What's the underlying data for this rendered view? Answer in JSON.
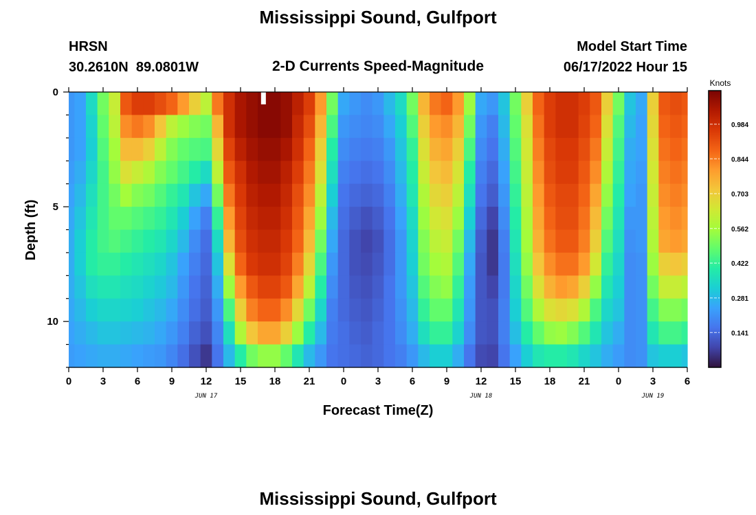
{
  "header": {
    "title": "Mississippi Sound, Gulfport",
    "station_id": "HRSN",
    "coords": "30.2610N  89.0801W",
    "subtitle": "2-D Currents Speed-Magnitude",
    "model_start_label": "Model Start Time",
    "model_start_value": "06/17/2022 Hour 15"
  },
  "footer": {
    "next_title": "Mississippi Sound, Gulfport"
  },
  "chart_data": {
    "type": "heatmap",
    "title": "2-D Currents Speed-Magnitude",
    "xlabel": "Forecast Time(Z)",
    "ylabel": "Depth (ft)",
    "x_range_hours": [
      0,
      54
    ],
    "y_range_ft": [
      0,
      12
    ],
    "x_tick_values": [
      0,
      3,
      6,
      9,
      12,
      15,
      18,
      21,
      24,
      27,
      30,
      33,
      36,
      39,
      42,
      45,
      48,
      51,
      54
    ],
    "x_tick_labels": [
      "0",
      "3",
      "6",
      "9",
      "12",
      "15",
      "18",
      "21",
      "0",
      "3",
      "6",
      "9",
      "12",
      "15",
      "18",
      "21",
      "0",
      "3",
      "6"
    ],
    "y_tick_values": [
      0,
      5,
      10
    ],
    "y_tick_labels": [
      "0",
      "5",
      "10"
    ],
    "date_labels": [
      {
        "text": "JUN 17",
        "hour": 12
      },
      {
        "text": "JUN 18",
        "hour": 36
      },
      {
        "text": "JUN 19",
        "hour": 51
      }
    ],
    "now_marker_hour": 17,
    "colorbar": {
      "unit": "Knots",
      "min": 0.0,
      "max": 1.12,
      "tick_values": [
        0.141,
        0.281,
        0.422,
        0.562,
        0.703,
        0.844,
        0.984
      ],
      "tick_labels": [
        "0.141",
        "0.281",
        "0.422",
        "0.562",
        "0.703",
        "0.844",
        "0.984"
      ],
      "colors": [
        "#30123b",
        "#4145ab",
        "#4675ed",
        "#39a2fc",
        "#1bcfd4",
        "#24eca6",
        "#61fc6c",
        "#a4fc3b",
        "#d1e834",
        "#f3c63a",
        "#fe9b2d",
        "#f36315",
        "#d93806",
        "#b11901",
        "#7a0403"
      ]
    },
    "time_hours": [
      0,
      1,
      2,
      3,
      4,
      5,
      6,
      7,
      8,
      9,
      10,
      11,
      12,
      13,
      14,
      15,
      16,
      17,
      18,
      19,
      20,
      21,
      22,
      23,
      24,
      25,
      26,
      27,
      28,
      29,
      30,
      31,
      32,
      33,
      34,
      35,
      36,
      37,
      38,
      39,
      40,
      41,
      42,
      43,
      44,
      45,
      46,
      47,
      48,
      49,
      50,
      51,
      52,
      53,
      54
    ],
    "depth_ft": [
      0.5,
      1.5,
      2.5,
      3.5,
      4.5,
      5.5,
      6.5,
      7.5,
      8.5,
      9.5,
      10.5,
      11.5
    ],
    "speed_knots": [
      [
        0.22,
        0.24,
        0.35,
        0.5,
        0.62,
        0.9,
        0.95,
        0.95,
        0.92,
        0.88,
        0.8,
        0.7,
        0.6,
        0.85,
        0.98,
        1.05,
        1.08,
        1.1,
        1.1,
        1.08,
        1.02,
        0.95,
        0.8,
        0.5,
        0.25,
        0.22,
        0.2,
        0.22,
        0.28,
        0.35,
        0.5,
        0.75,
        0.85,
        0.88,
        0.8,
        0.55,
        0.25,
        0.22,
        0.3,
        0.5,
        0.7,
        0.88,
        0.95,
        0.98,
        0.98,
        0.95,
        0.9,
        0.7,
        0.5,
        0.3,
        0.25,
        0.7,
        0.9,
        0.92,
        0.9
      ],
      [
        0.22,
        0.24,
        0.33,
        0.48,
        0.6,
        0.82,
        0.85,
        0.82,
        0.72,
        0.6,
        0.55,
        0.52,
        0.5,
        0.75,
        0.98,
        1.05,
        1.08,
        1.1,
        1.1,
        1.08,
        1.0,
        0.92,
        0.75,
        0.45,
        0.22,
        0.2,
        0.19,
        0.2,
        0.25,
        0.32,
        0.46,
        0.7,
        0.8,
        0.82,
        0.75,
        0.5,
        0.22,
        0.18,
        0.28,
        0.48,
        0.66,
        0.86,
        0.95,
        0.98,
        0.98,
        0.94,
        0.88,
        0.66,
        0.46,
        0.28,
        0.24,
        0.68,
        0.88,
        0.9,
        0.88
      ],
      [
        0.22,
        0.24,
        0.32,
        0.46,
        0.56,
        0.74,
        0.74,
        0.7,
        0.6,
        0.52,
        0.48,
        0.46,
        0.45,
        0.68,
        0.94,
        1.02,
        1.06,
        1.08,
        1.08,
        1.05,
        0.98,
        0.88,
        0.7,
        0.4,
        0.2,
        0.18,
        0.17,
        0.18,
        0.22,
        0.3,
        0.42,
        0.66,
        0.76,
        0.78,
        0.7,
        0.45,
        0.2,
        0.16,
        0.26,
        0.46,
        0.64,
        0.84,
        0.93,
        0.96,
        0.96,
        0.92,
        0.85,
        0.62,
        0.44,
        0.26,
        0.24,
        0.66,
        0.86,
        0.88,
        0.86
      ],
      [
        0.23,
        0.26,
        0.34,
        0.44,
        0.54,
        0.66,
        0.62,
        0.58,
        0.52,
        0.48,
        0.44,
        0.4,
        0.35,
        0.6,
        0.9,
        0.98,
        1.04,
        1.06,
        1.06,
        1.02,
        0.95,
        0.85,
        0.66,
        0.36,
        0.18,
        0.16,
        0.15,
        0.16,
        0.2,
        0.28,
        0.4,
        0.62,
        0.72,
        0.74,
        0.65,
        0.4,
        0.18,
        0.14,
        0.24,
        0.44,
        0.62,
        0.82,
        0.92,
        0.95,
        0.95,
        0.9,
        0.82,
        0.58,
        0.42,
        0.25,
        0.23,
        0.64,
        0.84,
        0.86,
        0.84
      ],
      [
        0.24,
        0.28,
        0.36,
        0.44,
        0.5,
        0.56,
        0.52,
        0.5,
        0.46,
        0.42,
        0.38,
        0.3,
        0.25,
        0.5,
        0.85,
        0.96,
        1.02,
        1.04,
        1.04,
        1.0,
        0.92,
        0.82,
        0.6,
        0.32,
        0.16,
        0.14,
        0.13,
        0.14,
        0.18,
        0.26,
        0.38,
        0.58,
        0.68,
        0.7,
        0.6,
        0.36,
        0.16,
        0.12,
        0.22,
        0.42,
        0.6,
        0.8,
        0.9,
        0.93,
        0.93,
        0.88,
        0.78,
        0.54,
        0.4,
        0.24,
        0.22,
        0.62,
        0.82,
        0.84,
        0.82
      ],
      [
        0.25,
        0.3,
        0.38,
        0.44,
        0.48,
        0.48,
        0.46,
        0.44,
        0.42,
        0.38,
        0.32,
        0.24,
        0.18,
        0.42,
        0.8,
        0.94,
        1.0,
        1.02,
        1.02,
        0.98,
        0.9,
        0.78,
        0.55,
        0.28,
        0.15,
        0.12,
        0.1,
        0.12,
        0.16,
        0.24,
        0.35,
        0.55,
        0.64,
        0.66,
        0.55,
        0.32,
        0.14,
        0.08,
        0.2,
        0.4,
        0.58,
        0.78,
        0.88,
        0.92,
        0.92,
        0.86,
        0.74,
        0.5,
        0.38,
        0.22,
        0.22,
        0.6,
        0.8,
        0.82,
        0.8
      ],
      [
        0.26,
        0.32,
        0.4,
        0.44,
        0.46,
        0.44,
        0.42,
        0.4,
        0.38,
        0.34,
        0.28,
        0.2,
        0.15,
        0.35,
        0.75,
        0.92,
        0.98,
        1.0,
        1.0,
        0.96,
        0.88,
        0.74,
        0.5,
        0.25,
        0.14,
        0.1,
        0.08,
        0.1,
        0.15,
        0.22,
        0.33,
        0.52,
        0.6,
        0.62,
        0.5,
        0.28,
        0.12,
        0.06,
        0.18,
        0.38,
        0.56,
        0.76,
        0.86,
        0.9,
        0.9,
        0.84,
        0.7,
        0.46,
        0.36,
        0.21,
        0.22,
        0.58,
        0.78,
        0.8,
        0.78
      ],
      [
        0.26,
        0.32,
        0.4,
        0.42,
        0.42,
        0.4,
        0.38,
        0.36,
        0.34,
        0.3,
        0.24,
        0.18,
        0.14,
        0.3,
        0.66,
        0.88,
        0.96,
        0.98,
        0.98,
        0.94,
        0.84,
        0.68,
        0.45,
        0.22,
        0.14,
        0.1,
        0.09,
        0.11,
        0.15,
        0.22,
        0.32,
        0.5,
        0.56,
        0.58,
        0.46,
        0.25,
        0.11,
        0.06,
        0.17,
        0.36,
        0.54,
        0.72,
        0.82,
        0.86,
        0.86,
        0.8,
        0.64,
        0.42,
        0.34,
        0.2,
        0.21,
        0.55,
        0.7,
        0.72,
        0.7
      ],
      [
        0.26,
        0.3,
        0.36,
        0.38,
        0.38,
        0.36,
        0.35,
        0.33,
        0.31,
        0.28,
        0.22,
        0.16,
        0.13,
        0.26,
        0.55,
        0.8,
        0.9,
        0.94,
        0.94,
        0.9,
        0.78,
        0.6,
        0.4,
        0.2,
        0.14,
        0.11,
        0.1,
        0.12,
        0.16,
        0.22,
        0.3,
        0.46,
        0.52,
        0.54,
        0.42,
        0.23,
        0.11,
        0.08,
        0.17,
        0.34,
        0.5,
        0.66,
        0.76,
        0.8,
        0.78,
        0.7,
        0.54,
        0.38,
        0.32,
        0.2,
        0.21,
        0.5,
        0.62,
        0.62,
        0.6
      ],
      [
        0.25,
        0.28,
        0.32,
        0.34,
        0.34,
        0.33,
        0.32,
        0.3,
        0.28,
        0.25,
        0.2,
        0.15,
        0.12,
        0.22,
        0.45,
        0.7,
        0.84,
        0.88,
        0.88,
        0.82,
        0.68,
        0.5,
        0.34,
        0.18,
        0.14,
        0.12,
        0.11,
        0.13,
        0.16,
        0.21,
        0.28,
        0.42,
        0.48,
        0.48,
        0.38,
        0.22,
        0.11,
        0.1,
        0.18,
        0.32,
        0.46,
        0.58,
        0.66,
        0.68,
        0.66,
        0.58,
        0.45,
        0.34,
        0.3,
        0.2,
        0.21,
        0.44,
        0.52,
        0.52,
        0.5
      ],
      [
        0.24,
        0.26,
        0.28,
        0.3,
        0.3,
        0.29,
        0.28,
        0.27,
        0.25,
        0.22,
        0.18,
        0.13,
        0.1,
        0.19,
        0.36,
        0.58,
        0.72,
        0.78,
        0.78,
        0.7,
        0.55,
        0.4,
        0.28,
        0.17,
        0.15,
        0.13,
        0.12,
        0.14,
        0.16,
        0.2,
        0.26,
        0.36,
        0.42,
        0.42,
        0.33,
        0.2,
        0.11,
        0.1,
        0.18,
        0.29,
        0.4,
        0.48,
        0.54,
        0.55,
        0.52,
        0.46,
        0.38,
        0.3,
        0.26,
        0.2,
        0.21,
        0.38,
        0.44,
        0.44,
        0.42
      ],
      [
        0.23,
        0.24,
        0.25,
        0.26,
        0.26,
        0.25,
        0.24,
        0.23,
        0.22,
        0.19,
        0.15,
        0.1,
        0.06,
        0.16,
        0.28,
        0.4,
        0.5,
        0.54,
        0.54,
        0.48,
        0.38,
        0.28,
        0.22,
        0.16,
        0.15,
        0.14,
        0.13,
        0.14,
        0.16,
        0.18,
        0.22,
        0.28,
        0.32,
        0.32,
        0.26,
        0.16,
        0.09,
        0.08,
        0.16,
        0.24,
        0.32,
        0.38,
        0.4,
        0.4,
        0.38,
        0.34,
        0.3,
        0.26,
        0.23,
        0.2,
        0.21,
        0.3,
        0.32,
        0.32,
        0.3
      ]
    ]
  }
}
